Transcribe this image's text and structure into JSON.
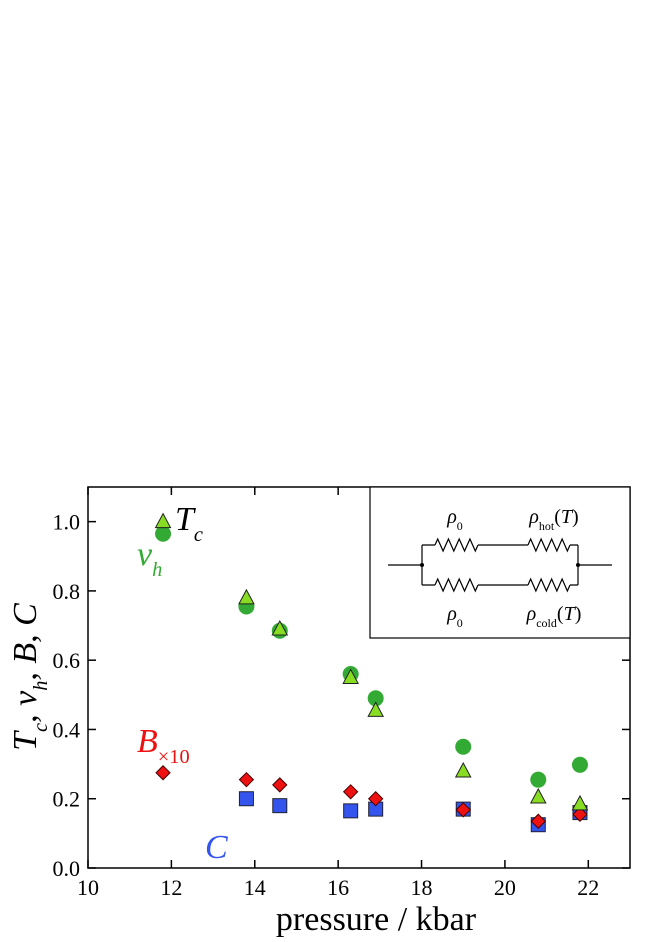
{
  "chart_data": {
    "type": "scatter",
    "xlabel": "pressure / kbar",
    "ylabel": [
      {
        "text": "T",
        "italic": true
      },
      {
        "text": "c",
        "sub": true,
        "italic": true
      },
      {
        "text": ", "
      },
      {
        "text": "v",
        "italic": true
      },
      {
        "text": "h",
        "sub": true,
        "italic": true
      },
      {
        "text": ", "
      },
      {
        "text": "B",
        "italic": true
      },
      {
        "text": ", "
      },
      {
        "text": "C",
        "italic": true
      }
    ],
    "xlim": [
      10,
      23
    ],
    "ylim": [
      0,
      1.1
    ],
    "xticks": [
      10,
      12,
      14,
      16,
      18,
      20,
      22
    ],
    "yticks": [
      {
        "value": 0,
        "label": "0.0"
      },
      {
        "value": 0.2,
        "label": "0.2"
      },
      {
        "value": 0.4,
        "label": "0.4"
      },
      {
        "value": 0.6,
        "label": "0.6"
      },
      {
        "value": 0.8,
        "label": "0.8"
      },
      {
        "value": 1.0,
        "label": "1.0"
      }
    ],
    "series": [
      {
        "label": [
          {
            "text": "C",
            "italic": true
          }
        ],
        "color": "#3355ee",
        "marker": "square",
        "x": [
          13.8,
          14.6,
          16.3,
          16.9,
          19.0,
          20.8,
          21.8
        ],
        "values": [
          0.2,
          0.18,
          0.165,
          0.17,
          0.17,
          0.125,
          0.16
        ]
      },
      {
        "label": [
          {
            "text": "B",
            "italic": true
          },
          {
            "text": "×10",
            "sub": true
          }
        ],
        "color": "#ee1111",
        "marker": "diamond",
        "x": [
          11.8,
          13.8,
          14.6,
          16.3,
          16.9,
          19.0,
          20.8,
          21.8
        ],
        "values": [
          0.275,
          0.255,
          0.24,
          0.22,
          0.2,
          0.168,
          0.135,
          0.155
        ]
      },
      {
        "label": [
          {
            "text": "v",
            "italic": true
          },
          {
            "text": "h",
            "sub": true,
            "italic": true
          }
        ],
        "color": "#33aa33",
        "marker": "circle",
        "x": [
          11.8,
          13.8,
          14.6,
          16.3,
          16.9,
          19.0,
          20.8,
          21.8
        ],
        "values": [
          0.965,
          0.755,
          0.685,
          0.56,
          0.49,
          0.35,
          0.255,
          0.298
        ]
      },
      {
        "label": [
          {
            "text": "T",
            "italic": true
          },
          {
            "text": "c",
            "sub": true,
            "italic": true
          }
        ],
        "color": "#88dd22",
        "marker": "triangle",
        "x": [
          11.8,
          13.8,
          14.6,
          16.3,
          16.9,
          19.0,
          20.8,
          21.8
        ],
        "values": [
          1.0,
          0.78,
          0.69,
          0.55,
          0.455,
          0.28,
          0.205,
          0.185
        ]
      }
    ],
    "inset": {
      "labels": [
        [
          {
            "text": "ρ",
            "italic": true
          },
          {
            "text": "0",
            "sub": true
          }
        ],
        [
          {
            "text": "ρ",
            "italic": true
          },
          {
            "text": "hot",
            "sub": true
          },
          {
            "text": "("
          },
          {
            "text": "T",
            "italic": true
          },
          {
            "text": ")"
          }
        ],
        [
          {
            "text": "ρ",
            "italic": true
          },
          {
            "text": "0",
            "sub": true
          }
        ],
        [
          {
            "text": "ρ",
            "italic": true
          },
          {
            "text": "cold",
            "sub": true
          },
          {
            "text": "("
          },
          {
            "text": "T",
            "italic": true
          },
          {
            "text": ")"
          }
        ]
      ]
    }
  }
}
